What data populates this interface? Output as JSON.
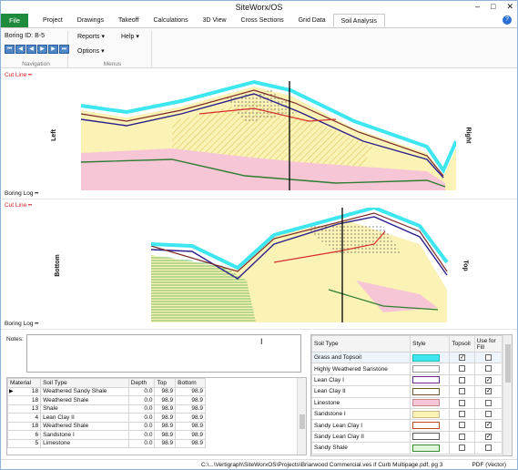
{
  "title": "SiteWorx/OS",
  "window_controls": [
    "–",
    "□",
    "✕"
  ],
  "tabs": {
    "file": "File",
    "items": [
      "Project",
      "Drawings",
      "Takeoff",
      "Calculations",
      "3D View",
      "Cross Sections",
      "Grid Data",
      "Soil Analysis"
    ],
    "active": "Soil Analysis"
  },
  "ribbon": {
    "boring_label": "Boring ID:",
    "boring_id": "B-5",
    "nav_buttons": [
      "⏮",
      "◀",
      "◀",
      "▶",
      "▶",
      "⏭"
    ],
    "navigation_label": "Navigation",
    "reports": "Reports",
    "help": "Help",
    "options": "Options",
    "menus_label": "Menus"
  },
  "panels": {
    "top": {
      "cut_line": "Cut Line",
      "left": "Left",
      "right": "Right",
      "boring_log": "Boring Log"
    },
    "bottom": {
      "cut_line": "Cut Line",
      "left": "Bottom",
      "right": "Top",
      "boring_log": "Boring Log"
    }
  },
  "notes_label": "Notes:",
  "materials_table": {
    "headers": [
      "Material",
      "Soil Type",
      "Depth",
      "Top",
      "Bottom"
    ],
    "rows": [
      [
        "18",
        "Weathered Sandy Shale",
        "0.0",
        "98.9",
        "98.9"
      ],
      [
        "18",
        "Weathered  Shale",
        "0.0",
        "98.9",
        "98.9"
      ],
      [
        "13",
        "Shale",
        "0.0",
        "98.9",
        "98.9"
      ],
      [
        "4",
        "Lean Clay II",
        "0.0",
        "98.9",
        "98.9"
      ],
      [
        "18",
        "Weathered  Shale",
        "0.0",
        "98.9",
        "98.9"
      ],
      [
        "6",
        "Sandstone I",
        "0.0",
        "98.9",
        "98.9"
      ],
      [
        "5",
        "Limestone",
        "0.0",
        "98.9",
        "98.9"
      ]
    ]
  },
  "soil_table": {
    "headers": [
      "Soil Type",
      "Style",
      "Topsoil",
      "Use for Fill"
    ],
    "rows": [
      {
        "name": "Grass and Topsoil",
        "color": "#3ee6f0",
        "border": "#2bb",
        "topsoil": true,
        "fill": false
      },
      {
        "name": "Highly Weathered Sanstone",
        "color": "#ffffff",
        "border": "#999",
        "topsoil": false,
        "fill": false
      },
      {
        "name": "Lean Clay I",
        "color": "#ffffff",
        "border": "#6a2a8a",
        "topsoil": false,
        "fill": true
      },
      {
        "name": "Lean Clay II",
        "color": "#ffffff",
        "border": "#6a5a2a",
        "topsoil": false,
        "fill": true
      },
      {
        "name": "Linestone",
        "color": "#f7c6d6",
        "border": "#c88",
        "topsoil": false,
        "fill": false
      },
      {
        "name": "Sandstone I",
        "color": "#fbf2b5",
        "border": "#cb8",
        "topsoil": false,
        "fill": false
      },
      {
        "name": "Sandy Lean Clay I",
        "color": "#ffffff",
        "border": "#c04a20",
        "topsoil": false,
        "fill": true
      },
      {
        "name": "Sandy Lean Clay II",
        "color": "#ffffff",
        "border": "#5a5a5a",
        "topsoil": false,
        "fill": true
      },
      {
        "name": "Sandy Shale",
        "color": "#dff5d8",
        "border": "#3a8a3a",
        "topsoil": false,
        "fill": false
      }
    ]
  },
  "status": {
    "path": "C:\\...\\Vertigraph\\SiteWorxOS\\Projects\\Briarwood Commercial.ves if Curb Multipage.pdf, pg 3",
    "output": "PDF (Vector)"
  }
}
